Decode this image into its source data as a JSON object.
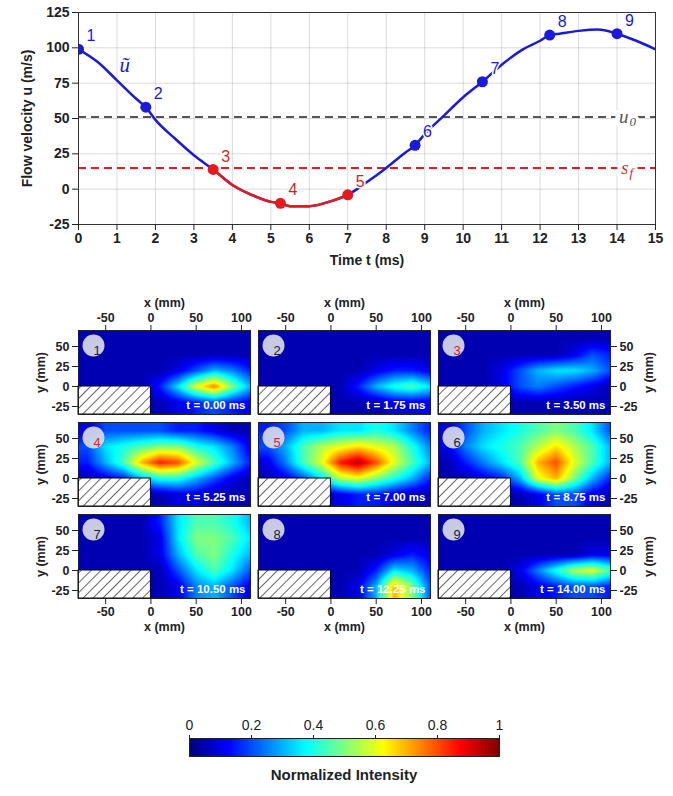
{
  "chart_data": [
    {
      "type": "line",
      "xlabel": "Time t (ms)",
      "ylabel": "Flow velocity u (m/s)",
      "xlim": [
        0,
        15
      ],
      "xticks": [
        0,
        1,
        2,
        3,
        4,
        5,
        6,
        7,
        8,
        9,
        10,
        11,
        12,
        13,
        14,
        15
      ],
      "ylim": [
        -25,
        125
      ],
      "yticks": [
        -25,
        0,
        25,
        50,
        75,
        100,
        125
      ],
      "grid": true,
      "x": [
        0,
        0.5,
        1,
        1.5,
        1.75,
        2,
        2.5,
        3,
        3.5,
        4,
        4.5,
        5,
        5.25,
        5.5,
        6,
        6.5,
        7,
        7.5,
        8,
        8.5,
        8.75,
        9,
        9.5,
        10,
        10.5,
        11,
        11.5,
        12,
        12.25,
        12.5,
        13,
        13.5,
        14,
        14.5,
        15
      ],
      "series": [
        {
          "color": "#1a1adb",
          "values": [
            99,
            90,
            77,
            64,
            58,
            49,
            36,
            24,
            14,
            3,
            -4,
            -9,
            -10,
            -12,
            -12,
            -9,
            -4,
            5,
            15,
            26,
            31,
            39,
            52,
            65,
            76,
            88,
            98,
            105,
            109,
            110,
            112,
            113,
            110,
            105,
            99
          ]
        },
        {
          "color": "#e41a1c",
          "values": [
            null,
            null,
            null,
            null,
            null,
            null,
            null,
            null,
            14,
            3,
            -4,
            -9,
            -10,
            -12,
            -12,
            -9,
            -4,
            null,
            null,
            null,
            null,
            null,
            null,
            null,
            null,
            null,
            null,
            null,
            null,
            null,
            null,
            null,
            null,
            null,
            null
          ]
        }
      ],
      "points": {
        "x": [
          0,
          1.75,
          3.5,
          5.25,
          7,
          8.75,
          10.5,
          12.25,
          14
        ],
        "values": [
          99,
          58,
          14,
          -10,
          -4,
          31,
          76,
          109,
          110
        ],
        "labels": [
          "1",
          "2",
          "3",
          "4",
          "5",
          "6",
          "7",
          "8",
          "9"
        ],
        "colors": [
          "#1a1adb",
          "#1a1adb",
          "#e41a1c",
          "#e41a1c",
          "#e41a1c",
          "#1a1adb",
          "#1a1adb",
          "#1a1adb",
          "#1a1adb"
        ]
      },
      "reference_lines": [
        {
          "y": 51,
          "color": "#555555",
          "line_style": "dashed",
          "label": "u",
          "label_sub": "0",
          "label_x": 14.3
        },
        {
          "y": 15,
          "color": "#e41a1c",
          "line_style": "dashed",
          "label": "s",
          "label_sub": "f",
          "label_x": 14.3
        }
      ],
      "annotations": [
        {
          "text": "ũ",
          "x": 1.2,
          "y": 88,
          "color": "#1a1adb"
        }
      ]
    },
    {
      "type": "heatmap",
      "xlabel": "x (mm)",
      "ylabel": "y (mm)",
      "xlim": [
        -80,
        110
      ],
      "xticks": [
        -50,
        0,
        50,
        100
      ],
      "ylim": [
        -35,
        70
      ],
      "yticks": [
        -25,
        0,
        25,
        50
      ],
      "step_corner": [
        0,
        0
      ],
      "cell_x": [
        -70,
        -50,
        -30,
        -10,
        10,
        30,
        50,
        70,
        90,
        110
      ],
      "cell_y": [
        60,
        40,
        20,
        0,
        -20
      ],
      "colorbar": {
        "label": "Normalized Intensity",
        "range": [
          0,
          1
        ],
        "ticks": [
          0,
          0.2,
          0.4,
          0.6,
          0.8,
          1
        ]
      },
      "panels": [
        {
          "label": "1",
          "time": "t = 0.00 ms",
          "color": "#222222",
          "values": [
            [
              0.05,
              0.05,
              0.05,
              0.05,
              0.05,
              0.05,
              0.05,
              0.05,
              0.05,
              0.05
            ],
            [
              0.05,
              0.05,
              0.05,
              0.05,
              0.05,
              0.05,
              0.05,
              0.05,
              0.05,
              0.05
            ],
            [
              0.05,
              0.05,
              0.05,
              0.05,
              0.05,
              0.1,
              0.2,
              0.3,
              0.25,
              0.15
            ],
            [
              0.05,
              0.05,
              0.05,
              0.05,
              0.15,
              0.35,
              0.6,
              0.75,
              0.5,
              0.3
            ],
            [
              0.05,
              0.05,
              0.05,
              0.05,
              0.05,
              0.1,
              0.15,
              0.2,
              0.15,
              0.1
            ]
          ]
        },
        {
          "label": "2",
          "time": "t = 1.75 ms",
          "color": "#222222",
          "values": [
            [
              0.05,
              0.05,
              0.05,
              0.05,
              0.05,
              0.05,
              0.05,
              0.05,
              0.05,
              0.05
            ],
            [
              0.05,
              0.05,
              0.05,
              0.05,
              0.05,
              0.05,
              0.05,
              0.05,
              0.05,
              0.05
            ],
            [
              0.05,
              0.05,
              0.05,
              0.05,
              0.05,
              0.05,
              0.1,
              0.15,
              0.15,
              0.1
            ],
            [
              0.05,
              0.05,
              0.05,
              0.05,
              0.05,
              0.15,
              0.3,
              0.4,
              0.45,
              0.35
            ],
            [
              0.05,
              0.05,
              0.05,
              0.05,
              0.05,
              0.05,
              0.05,
              0.1,
              0.1,
              0.1
            ]
          ]
        },
        {
          "label": "3",
          "time": "t = 3.50 ms",
          "color": "#e41a1c",
          "values": [
            [
              0.05,
              0.05,
              0.05,
              0.05,
              0.05,
              0.05,
              0.05,
              0.05,
              0.05,
              0.05
            ],
            [
              0.05,
              0.05,
              0.05,
              0.05,
              0.05,
              0.05,
              0.05,
              0.1,
              0.2,
              0.15
            ],
            [
              0.05,
              0.05,
              0.05,
              0.1,
              0.2,
              0.3,
              0.35,
              0.35,
              0.3,
              0.2
            ],
            [
              0.05,
              0.05,
              0.05,
              0.1,
              0.2,
              0.25,
              0.2,
              0.15,
              0.1,
              0.05
            ],
            [
              0.05,
              0.05,
              0.05,
              0.05,
              0.05,
              0.05,
              0.05,
              0.05,
              0.05,
              0.05
            ]
          ]
        },
        {
          "label": "4",
          "time": "t = 5.25 ms",
          "color": "#e41a1c",
          "values": [
            [
              0.1,
              0.2,
              0.2,
              0.2,
              0.2,
              0.15,
              0.15,
              0.1,
              0.05,
              0.05
            ],
            [
              0.2,
              0.35,
              0.4,
              0.45,
              0.5,
              0.5,
              0.4,
              0.35,
              0.25,
              0.1
            ],
            [
              0.15,
              0.3,
              0.45,
              0.7,
              0.85,
              0.8,
              0.6,
              0.45,
              0.3,
              0.15
            ],
            [
              0.05,
              0.1,
              0.15,
              0.3,
              0.4,
              0.4,
              0.3,
              0.2,
              0.1,
              0.05
            ],
            [
              0.05,
              0.05,
              0.05,
              0.05,
              0.05,
              0.1,
              0.1,
              0.05,
              0.05,
              0.05
            ]
          ]
        },
        {
          "label": "5",
          "time": "t = 7.00 ms",
          "color": "#e41a1c",
          "values": [
            [
              0.15,
              0.2,
              0.3,
              0.3,
              0.35,
              0.35,
              0.4,
              0.35,
              0.25,
              0.15
            ],
            [
              0.2,
              0.3,
              0.45,
              0.55,
              0.6,
              0.65,
              0.6,
              0.55,
              0.4,
              0.25
            ],
            [
              0.1,
              0.25,
              0.45,
              0.6,
              0.85,
              0.95,
              0.8,
              0.6,
              0.45,
              0.3
            ],
            [
              0.05,
              0.1,
              0.2,
              0.35,
              0.55,
              0.6,
              0.5,
              0.4,
              0.3,
              0.15
            ],
            [
              0.05,
              0.05,
              0.05,
              0.05,
              0.1,
              0.15,
              0.15,
              0.1,
              0.05,
              0.05
            ]
          ]
        },
        {
          "label": "6",
          "time": "t = 8.75 ms",
          "color": "#222222",
          "values": [
            [
              0.1,
              0.2,
              0.3,
              0.35,
              0.4,
              0.45,
              0.5,
              0.45,
              0.35,
              0.2
            ],
            [
              0.1,
              0.25,
              0.35,
              0.4,
              0.45,
              0.55,
              0.65,
              0.55,
              0.45,
              0.3
            ],
            [
              0.05,
              0.15,
              0.25,
              0.35,
              0.45,
              0.7,
              0.8,
              0.6,
              0.45,
              0.3
            ],
            [
              0.05,
              0.05,
              0.1,
              0.15,
              0.3,
              0.6,
              0.7,
              0.5,
              0.3,
              0.15
            ],
            [
              0.05,
              0.05,
              0.05,
              0.05,
              0.05,
              0.1,
              0.2,
              0.2,
              0.1,
              0.05
            ]
          ]
        },
        {
          "label": "7",
          "time": "t = 10.50 ms",
          "color": "#222222",
          "values": [
            [
              0.05,
              0.05,
              0.05,
              0.05,
              0.15,
              0.35,
              0.45,
              0.45,
              0.4,
              0.3
            ],
            [
              0.05,
              0.05,
              0.05,
              0.05,
              0.1,
              0.35,
              0.5,
              0.5,
              0.45,
              0.35
            ],
            [
              0.05,
              0.05,
              0.05,
              0.05,
              0.1,
              0.3,
              0.45,
              0.5,
              0.4,
              0.3
            ],
            [
              0.05,
              0.05,
              0.05,
              0.05,
              0.05,
              0.2,
              0.35,
              0.45,
              0.35,
              0.2
            ],
            [
              0.05,
              0.05,
              0.05,
              0.05,
              0.05,
              0.1,
              0.25,
              0.3,
              0.2,
              0.1
            ]
          ]
        },
        {
          "label": "8",
          "time": "t = 12.25 ms",
          "color": "#222222",
          "values": [
            [
              0.05,
              0.05,
              0.05,
              0.05,
              0.05,
              0.05,
              0.05,
              0.05,
              0.05,
              0.05
            ],
            [
              0.05,
              0.05,
              0.05,
              0.05,
              0.05,
              0.05,
              0.05,
              0.05,
              0.05,
              0.05
            ],
            [
              0.05,
              0.05,
              0.05,
              0.05,
              0.05,
              0.05,
              0.05,
              0.1,
              0.15,
              0.1
            ],
            [
              0.05,
              0.05,
              0.05,
              0.05,
              0.05,
              0.05,
              0.15,
              0.35,
              0.3,
              0.15
            ],
            [
              0.05,
              0.05,
              0.05,
              0.05,
              0.05,
              0.1,
              0.3,
              0.7,
              0.5,
              0.2
            ]
          ]
        },
        {
          "label": "9",
          "time": "t = 14.00 ms",
          "color": "#222222",
          "values": [
            [
              0.05,
              0.05,
              0.05,
              0.05,
              0.05,
              0.05,
              0.05,
              0.05,
              0.05,
              0.05
            ],
            [
              0.05,
              0.05,
              0.05,
              0.05,
              0.05,
              0.05,
              0.05,
              0.05,
              0.05,
              0.05
            ],
            [
              0.05,
              0.05,
              0.05,
              0.05,
              0.05,
              0.05,
              0.05,
              0.05,
              0.1,
              0.1
            ],
            [
              0.05,
              0.05,
              0.05,
              0.05,
              0.1,
              0.25,
              0.4,
              0.55,
              0.6,
              0.45
            ],
            [
              0.05,
              0.05,
              0.05,
              0.05,
              0.05,
              0.1,
              0.15,
              0.2,
              0.2,
              0.15
            ]
          ]
        }
      ]
    }
  ]
}
